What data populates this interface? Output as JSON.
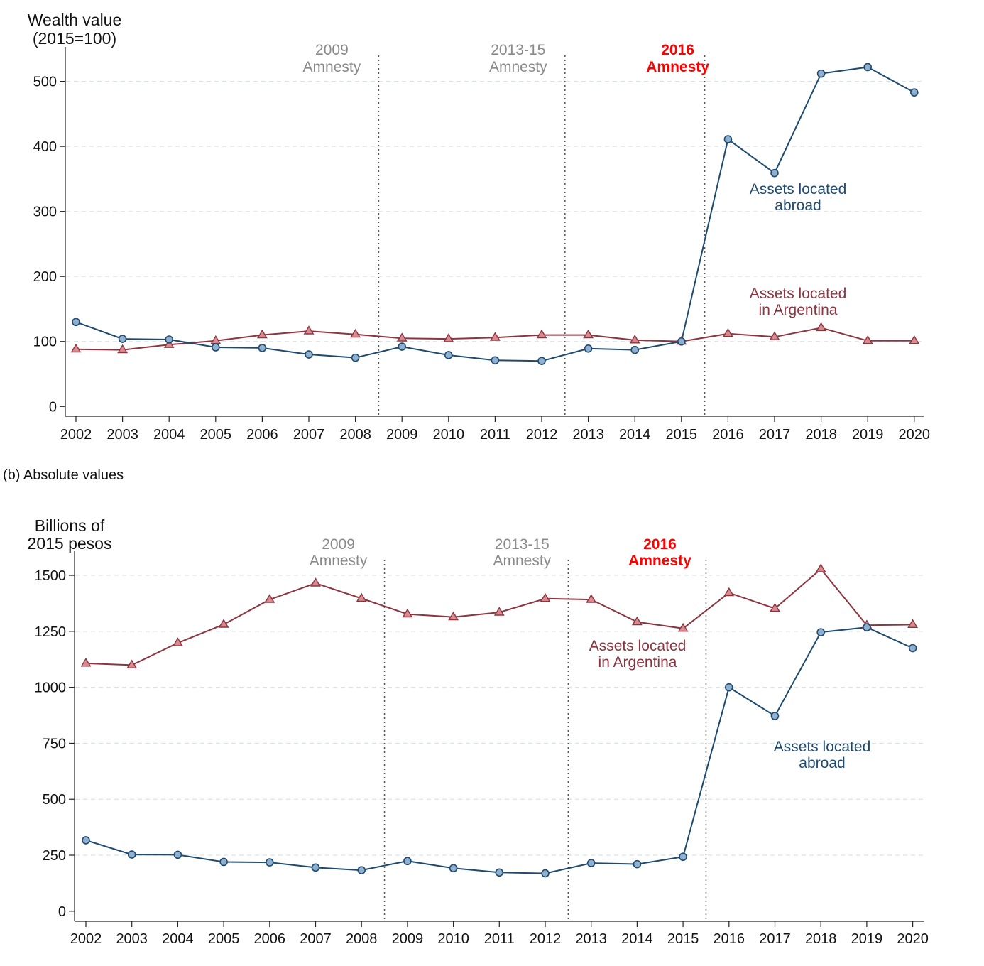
{
  "panel_b_caption": "(b) Absolute values",
  "colors": {
    "abroad_line": "#1f4a70",
    "abroad_marker_fill": "#8fb0cf",
    "argentina_line": "#8c3440",
    "argentina_marker_fill": "#d98a8f",
    "amnesty_gray": "#8a8a8a",
    "amnesty_highlight": "#ff0000",
    "grid": "#dbe3ea"
  },
  "chart_data": [
    {
      "type": "line",
      "ylabel_lines": [
        "Wealth value",
        "(2015=100)"
      ],
      "ylim": [
        -15,
        540
      ],
      "yticks": [
        0,
        100,
        200,
        300,
        400,
        500
      ],
      "x": [
        "2002",
        "2003",
        "2004",
        "2005",
        "2006",
        "2007",
        "2008",
        "2009",
        "2010",
        "2011",
        "2012",
        "2013",
        "2014",
        "2015",
        "2016",
        "2017",
        "2018",
        "2019",
        "2020"
      ],
      "series": [
        {
          "name": "Assets located abroad",
          "label_lines": [
            "Assets located",
            "abroad"
          ],
          "marker": "circle",
          "values": [
            130,
            104,
            103,
            91,
            90,
            80,
            75,
            92,
            79,
            71,
            70,
            89,
            87,
            100,
            411,
            359,
            512,
            522,
            483
          ]
        },
        {
          "name": "Assets located in Argentina",
          "label_lines": [
            "Assets located",
            "in Argentina"
          ],
          "marker": "triangle",
          "values": [
            88,
            87,
            95,
            101,
            110,
            116,
            111,
            105,
            104,
            106,
            110,
            110,
            102,
            100,
            112,
            107,
            121,
            101,
            101
          ]
        }
      ],
      "amnesties": [
        {
          "lines": [
            "2009",
            "Amnesty"
          ],
          "after_index": 6,
          "highlight": false
        },
        {
          "lines": [
            "2013-15",
            "Amnesty"
          ],
          "after_index": 10,
          "highlight": false
        },
        {
          "lines": [
            "2016",
            "Amnesty"
          ],
          "after_index": 13,
          "highlight": true
        }
      ]
    },
    {
      "type": "line",
      "ylabel_lines": [
        "Billions of",
        "2015 pesos"
      ],
      "ylim": [
        -45,
        1570
      ],
      "yticks": [
        0,
        250,
        500,
        750,
        1000,
        1250,
        1500
      ],
      "x": [
        "2002",
        "2003",
        "2004",
        "2005",
        "2006",
        "2007",
        "2008",
        "2009",
        "2010",
        "2011",
        "2012",
        "2013",
        "2014",
        "2015",
        "2016",
        "2017",
        "2018",
        "2019",
        "2020"
      ],
      "series": [
        {
          "name": "Assets located abroad",
          "label_lines": [
            "Assets located",
            "abroad"
          ],
          "marker": "circle",
          "values": [
            317,
            253,
            252,
            220,
            218,
            195,
            183,
            224,
            192,
            173,
            169,
            215,
            210,
            243,
            1000,
            872,
            1246,
            1268,
            1175
          ]
        },
        {
          "name": "Assets located in Argentina",
          "label_lines": [
            "Assets located",
            "in Argentina"
          ],
          "marker": "triangle",
          "values": [
            1107,
            1099,
            1198,
            1281,
            1392,
            1465,
            1397,
            1327,
            1314,
            1335,
            1396,
            1392,
            1292,
            1263,
            1422,
            1352,
            1528,
            1277,
            1280
          ]
        }
      ],
      "amnesties": [
        {
          "lines": [
            "2009",
            "Amnesty"
          ],
          "after_index": 6,
          "highlight": false
        },
        {
          "lines": [
            "2013-15",
            "Amnesty"
          ],
          "after_index": 10,
          "highlight": false
        },
        {
          "lines": [
            "2016",
            "Amnesty"
          ],
          "after_index": 13,
          "highlight": true
        }
      ]
    }
  ]
}
